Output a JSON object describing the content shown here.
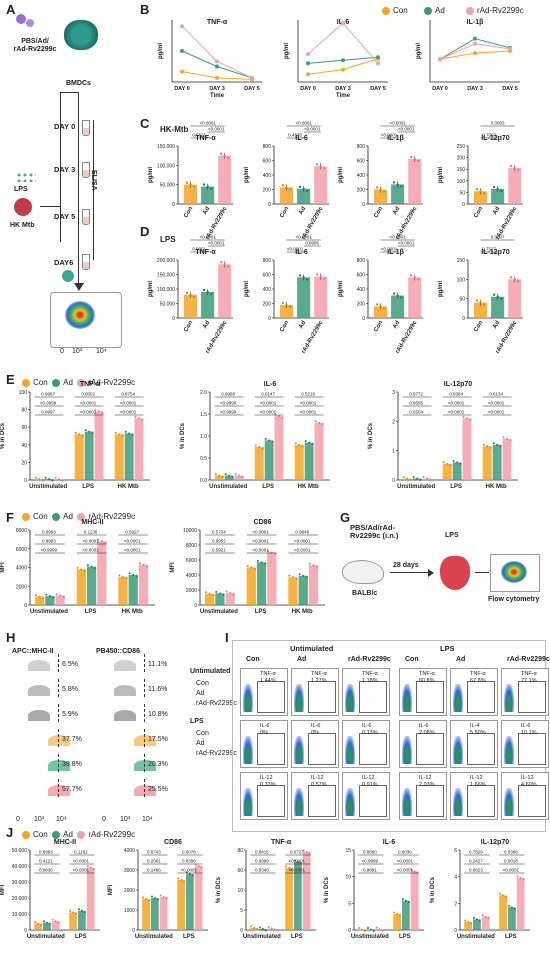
{
  "groups": [
    {
      "name": "Con",
      "color": "#f5a623"
    },
    {
      "name": "Ad",
      "color": "#3e9a7a"
    },
    {
      "name": "rAd-Rv2299c",
      "color": "#f3a0a8"
    }
  ],
  "panel_labels": {
    "A": "A",
    "B": "B",
    "C": "C",
    "D": "D",
    "E": "E",
    "F": "F",
    "G": "G",
    "H": "H",
    "I": "I",
    "J": "J"
  },
  "panelA": {
    "treatment": "PBS/Ad/\nrAd-Rv2299c",
    "bmdcs": "BMDCs",
    "lps": "LPS",
    "hk_mtb": "HK Mtb",
    "days": [
      "DAY 0",
      "DAY 3",
      "DAY 5",
      "DAY6"
    ],
    "elisa": "ELISA",
    "facs_axis": [
      "10³",
      "10⁴"
    ],
    "facs_zero": "0"
  },
  "panelB": {
    "charts": [
      {
        "title": "TNF-α",
        "ylabel": "pg/ml",
        "xlabel": "Time"
      },
      {
        "title": "IL-6",
        "ylabel": "pg/ml",
        "xlabel": "Time"
      },
      {
        "title": "IL-1β",
        "ylabel": "pg/ml",
        "xlabel": ""
      }
    ]
  },
  "panelC": {
    "condition": "HK-Mtb"
  },
  "panelD": {
    "condition": "LPS"
  },
  "panelE": {
    "ylabel": "% in DCs"
  },
  "panelF": {
    "ylabel": "MFI"
  },
  "panelG": {
    "treatment": "PBS/Ad/rAd-\nRv2299c (i.n.)",
    "days": "28 days",
    "lps": "LPS",
    "mouse": "BALB/c",
    "readout": "Flow cytometry"
  },
  "panelH": {
    "col1": "APC::MHC-II",
    "col2": "PB450::CD86",
    "unstim": "Untimulated",
    "lps": "LPS",
    "legend": [
      "Con",
      "Ad",
      "rAd-Rv2299c"
    ],
    "mhc": [
      "6.5%",
      "5.8%",
      "5.9%",
      "37.7%",
      "39.8%",
      "57.7%"
    ],
    "cd86": [
      "11.1%",
      "11.6%",
      "10.8%",
      "17.5%",
      "20.3%",
      "25.5%"
    ],
    "ticks": [
      "0",
      "10³",
      "10⁴"
    ]
  },
  "panelI": {
    "unstim": "Untimulated",
    "lps": "LPS",
    "cols": [
      "Con",
      "Ad",
      "rAd-Rv2299c",
      "Con",
      "Ad",
      "rAd-Rv2299c"
    ],
    "rows": [
      {
        "name": "TNF-α",
        "values": [
          "1.44%",
          "1.27%",
          "1.18%",
          "60.8%",
          "67.8%",
          "77.1%"
        ]
      },
      {
        "name": "IL-6",
        "values": [
          "0%",
          "0%",
          "0.13%",
          "2.08%",
          "5.50%",
          "10.1%"
        ]
      },
      {
        "name": "IL-12",
        "values": [
          "0.33%",
          "0.57%",
          "0.91%",
          "2.03%",
          "1.66%",
          "4.60%"
        ]
      }
    ],
    "row_alt_label": "IL-4"
  },
  "chart_data": [
    {
      "id": "B-TNF",
      "type": "line",
      "title": "TNF-α",
      "ylabel": "pg/ml",
      "xlabel": "Time",
      "categories": [
        "DAY 0",
        "DAY 3",
        "DAY 5"
      ],
      "series": [
        {
          "name": "Con",
          "values": [
            100,
            40,
            25
          ]
        },
        {
          "name": "Ad",
          "values": [
            300,
            150,
            40
          ]
        },
        {
          "name": "rAd-Rv2299c",
          "values": [
            540,
            200,
            40
          ]
        }
      ],
      "ylim": [
        0,
        600
      ]
    },
    {
      "id": "B-IL6",
      "type": "line",
      "title": "IL-6",
      "ylabel": "pg/ml",
      "xlabel": "Time",
      "categories": [
        "DAY 0",
        "DAY 3",
        "DAY 5"
      ],
      "series": [
        {
          "name": "Con",
          "values": [
            5,
            8,
            15
          ]
        },
        {
          "name": "Ad",
          "values": [
            12,
            14,
            16
          ]
        },
        {
          "name": "rAd-Rv2299c",
          "values": [
            18,
            38,
            12
          ]
        }
      ],
      "ylim": [
        0,
        40
      ]
    },
    {
      "id": "B-IL1",
      "type": "line",
      "title": "IL-1β",
      "ylabel": "pg/ml",
      "xlabel": "",
      "categories": [
        "DAY 0",
        "DAY 3",
        "DAY 5"
      ],
      "series": [
        {
          "name": "Con",
          "values": [
            110,
            140,
            150
          ]
        },
        {
          "name": "Ad",
          "values": [
            110,
            210,
            165
          ]
        },
        {
          "name": "rAd-Rv2299c",
          "values": [
            110,
            185,
            160
          ]
        }
      ],
      "ylim": [
        0,
        300
      ]
    },
    {
      "id": "C-TNF",
      "type": "bar",
      "title": "TNF-α",
      "ylabel": "pg/ml",
      "categories": [
        "Con",
        "Ad",
        "rAd-Rv2299c"
      ],
      "values": [
        50000,
        45000,
        125000
      ],
      "ylim": [
        0,
        150000
      ],
      "yticks": [
        "0",
        "50,000",
        "100,000",
        "150,000"
      ],
      "brackets": [
        {
          "a": 0,
          "b": 1,
          "label": "0.5815",
          "level": 0
        },
        {
          "a": 1,
          "b": 2,
          "label": "<0.0001",
          "level": 1
        },
        {
          "a": 0,
          "b": 2,
          "label": "<0.0001",
          "level": 2
        }
      ]
    },
    {
      "id": "C-IL6",
      "type": "bar",
      "title": "IL-6",
      "ylabel": "pg/ml",
      "categories": [
        "Con",
        "Ad",
        "rAd-Rv2299c"
      ],
      "values": [
        230,
        210,
        520
      ],
      "ylim": [
        0,
        800
      ],
      "yticks": [
        "0",
        "200",
        "400",
        "600",
        "800"
      ],
      "brackets": [
        {
          "a": 0,
          "b": 1,
          "label": "0.4565",
          "level": 0
        },
        {
          "a": 1,
          "b": 2,
          "label": "<0.0001",
          "level": 1
        },
        {
          "a": 0,
          "b": 2,
          "label": "<0.0001",
          "level": 2
        }
      ]
    },
    {
      "id": "C-IL1",
      "type": "bar",
      "title": "IL-1β",
      "ylabel": "pg/ml",
      "categories": [
        "Con",
        "Ad",
        "rAd-Rv2299c"
      ],
      "values": [
        200,
        270,
        620
      ],
      "ylim": [
        0,
        800
      ],
      "yticks": [
        "0",
        "200",
        "400",
        "600",
        "800"
      ],
      "brackets": [
        {
          "a": 0,
          "b": 1,
          "label": "<0.0001",
          "level": 0
        },
        {
          "a": 1,
          "b": 2,
          "label": "<0.0001",
          "level": 1
        },
        {
          "a": 0,
          "b": 2,
          "label": "<0.0001",
          "level": 2
        }
      ]
    },
    {
      "id": "C-IL12",
      "type": "bar",
      "title": "IL-12p70",
      "ylabel": "pg/ml",
      "categories": [
        "Con",
        "Ad",
        "rAd-Rv2299c"
      ],
      "values": [
        55,
        65,
        155
      ],
      "ylim": [
        0,
        250
      ],
      "yticks": [
        "0",
        "50",
        "100",
        "150",
        "200",
        "250"
      ],
      "brackets": [
        {
          "a": 0,
          "b": 1,
          "label": "0.7002",
          "level": 0
        },
        {
          "a": 0,
          "b": 2,
          "label": "0.0003",
          "level": 2
        }
      ]
    },
    {
      "id": "D-TNF",
      "type": "bar",
      "title": "TNF-α",
      "ylabel": "pg/ml",
      "categories": [
        "Con",
        "Ad",
        "rAd-Rv2299c"
      ],
      "values": [
        80000,
        90000,
        185000
      ],
      "ylim": [
        0,
        200000
      ],
      "yticks": [
        "0",
        "50,000",
        "100,000",
        "150,000",
        "200,000"
      ],
      "brackets": [
        {
          "a": 0,
          "b": 1,
          "label": "0.0051",
          "level": 0
        },
        {
          "a": 1,
          "b": 2,
          "label": "<0.0001",
          "level": 1
        },
        {
          "a": 0,
          "b": 2,
          "label": "<0.0001",
          "level": 2
        }
      ]
    },
    {
      "id": "D-IL6",
      "type": "bar",
      "title": "IL-6",
      "ylabel": "pg/ml",
      "categories": [
        "Con",
        "Ad",
        "rAd-Rv2299c"
      ],
      "values": [
        180,
        560,
        570
      ],
      "ylim": [
        0,
        800
      ],
      "yticks": [
        "0",
        "200",
        "400",
        "600",
        "800"
      ],
      "brackets": [
        {
          "a": 0,
          "b": 1,
          "label": "<0.0001",
          "level": 0
        },
        {
          "a": 1,
          "b": 2,
          "label": "0.9995",
          "level": 1
        },
        {
          "a": 0,
          "b": 2,
          "label": "<0.0001",
          "level": 2
        }
      ]
    },
    {
      "id": "D-IL1",
      "type": "bar",
      "title": "IL-1β",
      "ylabel": "pg/ml",
      "categories": [
        "Con",
        "Ad",
        "rAd-Rv2299c"
      ],
      "values": [
        160,
        310,
        560
      ],
      "ylim": [
        0,
        800
      ],
      "yticks": [
        "0",
        "200",
        "400",
        "600",
        "800"
      ],
      "brackets": [
        {
          "a": 0,
          "b": 1,
          "label": "<0.0001",
          "level": 0
        },
        {
          "a": 1,
          "b": 2,
          "label": "<0.0001",
          "level": 1
        },
        {
          "a": 0,
          "b": 2,
          "label": "<0.0001",
          "level": 2
        }
      ]
    },
    {
      "id": "D-IL12",
      "type": "bar",
      "title": "IL-12p70",
      "ylabel": "pg/ml",
      "categories": [
        "Con",
        "Ad",
        "rAd-Rv2299c"
      ],
      "values": [
        40,
        55,
        100
      ],
      "ylim": [
        0,
        150
      ],
      "yticks": [
        "0",
        "50",
        "100",
        "150"
      ],
      "brackets": [
        {
          "a": 0,
          "b": 1,
          "label": "0.7527",
          "level": 0
        },
        {
          "a": 0,
          "b": 2,
          "label": "0.0007",
          "level": 2
        }
      ]
    },
    {
      "id": "E-TNF",
      "type": "bar",
      "title": "TNF-α",
      "ylabel": "% in DCs",
      "groups": [
        "Unstimulated",
        "LPS",
        "HK Mtb"
      ],
      "series": [
        {
          "name": "Con",
          "values": [
            1,
            52,
            52
          ]
        },
        {
          "name": "Ad",
          "values": [
            1,
            55,
            53
          ]
        },
        {
          "name": "rAd-Rv2299c",
          "values": [
            1,
            78,
            70
          ]
        }
      ],
      "ylim": [
        0,
        100
      ],
      "yticks": [
        "0",
        "20",
        "40",
        "60",
        "80",
        "100"
      ],
      "labels": [
        [
          "0.9997",
          ">0.9999",
          "0.9997"
        ],
        [
          "0.0002",
          "<0.0001",
          "<0.0001"
        ],
        [
          "0.6754",
          "<0.0001",
          "<0.0001"
        ]
      ]
    },
    {
      "id": "E-IL6",
      "type": "bar",
      "title": "IL-6",
      "ylabel": "% in DCs",
      "groups": [
        "Unstimulated",
        "LPS",
        "HK Mtb"
      ],
      "series": [
        {
          "name": "Con",
          "values": [
            0.1,
            0.75,
            0.8
          ]
        },
        {
          "name": "Ad",
          "values": [
            0.1,
            0.9,
            0.85
          ]
        },
        {
          "name": "rAd-Rv2299c",
          "values": [
            0.1,
            1.45,
            1.3
          ]
        }
      ],
      "ylim": [
        0,
        2
      ],
      "yticks": [
        "0.0",
        "0.5",
        "1.0",
        "1.5",
        "2.0"
      ],
      "labels": [
        [
          "0.9988",
          ">0.9999",
          ">0.9999"
        ],
        [
          "0.0147",
          "<0.0001",
          "<0.0001"
        ],
        [
          "0.5216",
          "<0.0001",
          "<0.0001"
        ]
      ]
    },
    {
      "id": "E-IL12",
      "type": "bar",
      "title": "IL-12p70",
      "ylabel": "% in DCs",
      "groups": [
        "Unstimulated",
        "LPS",
        "HK Mtb"
      ],
      "series": [
        {
          "name": "Con",
          "values": [
            0.05,
            0.55,
            1.15
          ]
        },
        {
          "name": "Ad",
          "values": [
            0.05,
            0.6,
            1.2
          ]
        },
        {
          "name": "rAd-Rv2299c",
          "values": [
            0.05,
            2.1,
            1.4
          ]
        }
      ],
      "ylim": [
        0,
        3
      ],
      "yticks": [
        "0",
        "1",
        "2",
        "3"
      ],
      "labels": [
        [
          "0.9772",
          "0.9595",
          "0.5504"
        ],
        [
          "0.9384",
          "<0.0001",
          "<0.0001"
        ],
        [
          "0.6134",
          "<0.0001",
          "<0.0001"
        ]
      ]
    },
    {
      "id": "F-MHC",
      "type": "bar",
      "title": "MHC-II",
      "ylabel": "MFI",
      "groups": [
        "Unstimulated",
        "LPS",
        "HK Mtb"
      ],
      "series": [
        {
          "name": "Con",
          "values": [
            900,
            3800,
            3000
          ]
        },
        {
          "name": "Ad",
          "values": [
            950,
            4100,
            3200
          ]
        },
        {
          "name": "rAd-Rv2299c",
          "values": [
            1000,
            6800,
            4300
          ]
        }
      ],
      "ylim": [
        0,
        8000
      ],
      "yticks": [
        "0",
        "2000",
        "4000",
        "6000",
        "8000"
      ],
      "labels": [
        [
          "0.9993",
          "0.9993",
          ">0.9999"
        ],
        [
          "0.1136",
          "<0.0001",
          "<0.0001"
        ],
        [
          "0.5927",
          "<0.0001",
          "<0.0001"
        ]
      ]
    },
    {
      "id": "F-CD86",
      "type": "bar",
      "title": "CD86",
      "ylabel": "MFI",
      "groups": [
        "Unstimulated",
        "LPS",
        "HK Mtb"
      ],
      "series": [
        {
          "name": "Con",
          "values": [
            1500,
            5000,
            3700
          ]
        },
        {
          "name": "Ad",
          "values": [
            1550,
            5700,
            3900
          ]
        },
        {
          "name": "rAd-Rv2299c",
          "values": [
            1600,
            7000,
            5300
          ]
        }
      ],
      "ylim": [
        0,
        10000
      ],
      "yticks": [
        "0",
        "2000",
        "4000",
        "6000",
        "8000",
        "10000"
      ],
      "labels": [
        [
          "0.5734",
          "0.9952",
          "0.5921"
        ],
        [
          "<0.0001",
          "<0.0001",
          "<0.0001"
        ],
        [
          "0.9646",
          "<0.0001",
          "<0.0001"
        ]
      ]
    },
    {
      "id": "J-MHC",
      "type": "bar",
      "title": "MHC-II",
      "ylabel": "MFI",
      "groups": [
        "Unstimulated",
        "LPS"
      ],
      "series": [
        {
          "name": "Con",
          "values": [
            4000,
            11000
          ]
        },
        {
          "name": "Ad",
          "values": [
            4500,
            12000
          ]
        },
        {
          "name": "rAd-Rv2299c",
          "values": [
            5500,
            39000
          ]
        }
      ],
      "ylim": [
        0,
        50000
      ],
      "yticks": [
        "0",
        "10,000",
        "20,000",
        "30,000",
        "40,000",
        "50,000"
      ],
      "labels": [
        [
          "0.8993",
          "0.4121",
          "0.0836"
        ],
        [
          "0.1182",
          "<0.0001",
          "<0.0001"
        ]
      ]
    },
    {
      "id": "J-CD86",
      "type": "bar",
      "title": "CD86",
      "ylabel": "MFI",
      "groups": [
        "Unstimulated",
        "LPS"
      ],
      "series": [
        {
          "name": "Con",
          "values": [
            1550,
            2500
          ]
        },
        {
          "name": "Ad",
          "values": [
            1600,
            2800
          ]
        },
        {
          "name": "rAd-Rv2299c",
          "values": [
            1650,
            3200
          ]
        }
      ],
      "ylim": [
        0,
        4000
      ],
      "yticks": [
        "0",
        "1000",
        "2000",
        "3000",
        "4000"
      ],
      "labels": [
        [
          "0.8743",
          "0.2061",
          "0.1466"
        ],
        [
          "0.0078",
          "0.0390",
          "<0.0001"
        ]
      ]
    },
    {
      "id": "J-TNF",
      "type": "bar",
      "title": "TNF-α",
      "ylabel": "% in DCs",
      "groups": [
        "Unstimulated",
        "LPS"
      ],
      "series": [
        {
          "name": "Con",
          "values": [
            2,
            62
          ]
        },
        {
          "name": "Ad",
          "values": [
            1,
            68
          ]
        },
        {
          "name": "rAd-Rv2299c",
          "values": [
            1.5,
            78
          ]
        }
      ],
      "ylim": [
        0,
        80
      ],
      "yticks": [
        "0",
        "5",
        "10",
        "60",
        "80"
      ],
      "labels": [
        [
          "0.8415",
          "0.9999",
          "0.8340"
        ],
        [
          "0.0727",
          "<0.0001",
          "<0.0001"
        ]
      ]
    },
    {
      "id": "J-IL6",
      "type": "bar",
      "title": "IL-6",
      "ylabel": "% in DCs",
      "groups": [
        "Unstimulated",
        "LPS"
      ],
      "series": [
        {
          "name": "Con",
          "values": [
            0.1,
            3
          ]
        },
        {
          "name": "Ad",
          "values": [
            0.1,
            5.5
          ]
        },
        {
          "name": "rAd-Rv2299c",
          "values": [
            0.15,
            11
          ]
        }
      ],
      "ylim": [
        0,
        15
      ],
      "yticks": [
        "0",
        "5",
        "10",
        "15"
      ],
      "labels": [
        [
          "0.8880",
          ">0.9999",
          "0.9891"
        ],
        [
          "0.0036",
          "<0.0001",
          "<0.0001"
        ]
      ]
    },
    {
      "id": "J-IL12",
      "type": "bar",
      "title": "IL-12p70",
      "ylabel": "% in DCs",
      "groups": [
        "Unstimulated",
        "LPS"
      ],
      "series": [
        {
          "name": "Con",
          "values": [
            0.6,
            2.6
          ]
        },
        {
          "name": "Ad",
          "values": [
            0.8,
            1.7
          ]
        },
        {
          "name": "rAd-Rv2299c",
          "values": [
            1.0,
            3.9
          ]
        }
      ],
      "ylim": [
        0,
        6
      ],
      "yticks": [
        "0",
        "2",
        "4",
        "6"
      ],
      "labels": [
        [
          "0.7829",
          "0.2427",
          "0.0823"
        ],
        [
          "0.0368",
          "0.0018",
          "<0.0001"
        ]
      ]
    }
  ]
}
